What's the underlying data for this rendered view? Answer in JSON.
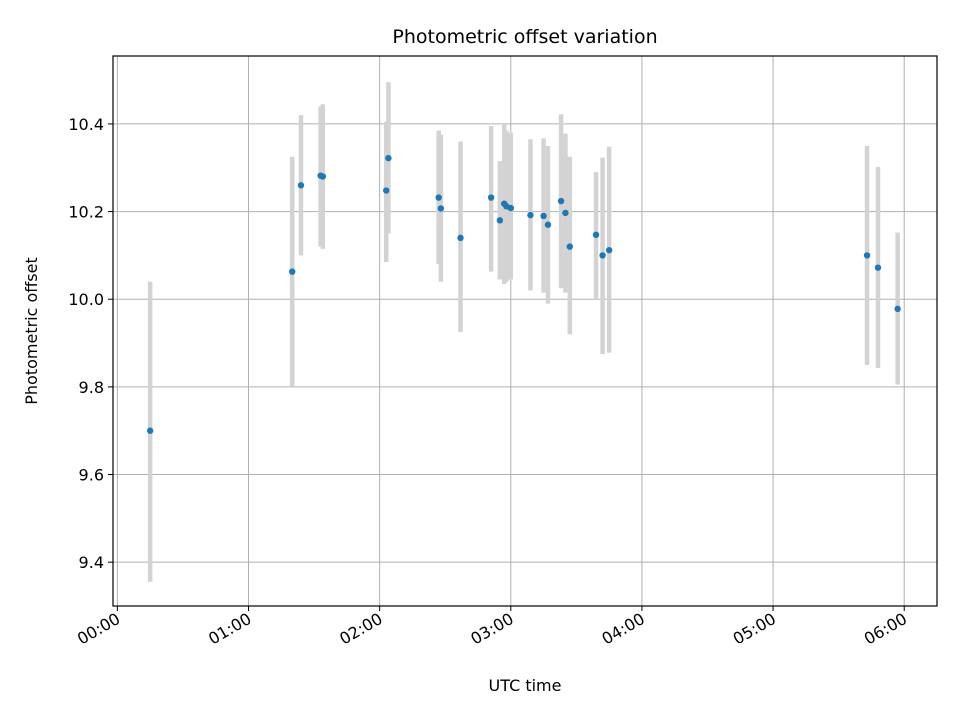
{
  "chart_data": {
    "type": "scatter",
    "title": "Photometric offset variation",
    "xlabel": "UTC time",
    "ylabel": "Photometric offset",
    "x_tick_labels": [
      "00:00",
      "01:00",
      "02:00",
      "03:00",
      "04:00",
      "05:00",
      "06:00"
    ],
    "x_tick_minutes": [
      0,
      60,
      120,
      180,
      240,
      300,
      360
    ],
    "y_tick_labels": [
      "9.4",
      "9.6",
      "9.8",
      "10.0",
      "10.2",
      "10.4"
    ],
    "y_tick_values": [
      9.4,
      9.6,
      9.8,
      10.0,
      10.2,
      10.4
    ],
    "xlim": [
      "23:58",
      "06:15"
    ],
    "ylim": [
      9.3,
      10.555
    ],
    "grid": true,
    "colors": {
      "marker": "#1f77b4",
      "errorbar": "#d3d3d3",
      "grid": "#b0b0b0"
    },
    "series": [
      {
        "points": [
          {
            "x": "00:15",
            "y": 9.7,
            "ylow": 9.355,
            "yhigh": 10.04
          },
          {
            "x": "01:20",
            "y": 10.063,
            "ylow": 9.8,
            "yhigh": 10.325
          },
          {
            "x": "01:24",
            "y": 10.26,
            "ylow": 10.1,
            "yhigh": 10.42
          },
          {
            "x": "01:33",
            "y": 10.282,
            "ylow": 10.12,
            "yhigh": 10.44
          },
          {
            "x": "01:34",
            "y": 10.28,
            "ylow": 10.115,
            "yhigh": 10.445
          },
          {
            "x": "02:03",
            "y": 10.248,
            "ylow": 10.085,
            "yhigh": 10.405
          },
          {
            "x": "02:04",
            "y": 10.322,
            "ylow": 10.15,
            "yhigh": 10.495
          },
          {
            "x": "02:27",
            "y": 10.232,
            "ylow": 10.08,
            "yhigh": 10.385
          },
          {
            "x": "02:28",
            "y": 10.207,
            "ylow": 10.04,
            "yhigh": 10.375
          },
          {
            "x": "02:37",
            "y": 10.14,
            "ylow": 9.925,
            "yhigh": 10.36
          },
          {
            "x": "02:51",
            "y": 10.232,
            "ylow": 10.063,
            "yhigh": 10.395
          },
          {
            "x": "02:55",
            "y": 10.18,
            "ylow": 10.045,
            "yhigh": 10.315
          },
          {
            "x": "02:57",
            "y": 10.218,
            "ylow": 10.035,
            "yhigh": 10.4
          },
          {
            "x": "02:58",
            "y": 10.212,
            "ylow": 10.04,
            "yhigh": 10.385
          },
          {
            "x": "03:00",
            "y": 10.208,
            "ylow": 10.045,
            "yhigh": 10.38
          },
          {
            "x": "03:09",
            "y": 10.192,
            "ylow": 10.02,
            "yhigh": 10.365
          },
          {
            "x": "03:15",
            "y": 10.19,
            "ylow": 10.015,
            "yhigh": 10.367
          },
          {
            "x": "03:17",
            "y": 10.17,
            "ylow": 9.99,
            "yhigh": 10.35
          },
          {
            "x": "03:23",
            "y": 10.224,
            "ylow": 10.025,
            "yhigh": 10.422
          },
          {
            "x": "03:25",
            "y": 10.197,
            "ylow": 10.015,
            "yhigh": 10.378
          },
          {
            "x": "03:27",
            "y": 10.12,
            "ylow": 9.92,
            "yhigh": 10.325
          },
          {
            "x": "03:39",
            "y": 10.147,
            "ylow": 10.0,
            "yhigh": 10.29
          },
          {
            "x": "03:42",
            "y": 10.1,
            "ylow": 9.875,
            "yhigh": 10.323
          },
          {
            "x": "03:45",
            "y": 10.112,
            "ylow": 9.878,
            "yhigh": 10.348
          },
          {
            "x": "05:43",
            "y": 10.1,
            "ylow": 9.85,
            "yhigh": 10.35
          },
          {
            "x": "05:48",
            "y": 10.072,
            "ylow": 9.843,
            "yhigh": 10.302
          },
          {
            "x": "05:57",
            "y": 9.978,
            "ylow": 9.805,
            "yhigh": 10.152
          }
        ]
      }
    ]
  }
}
